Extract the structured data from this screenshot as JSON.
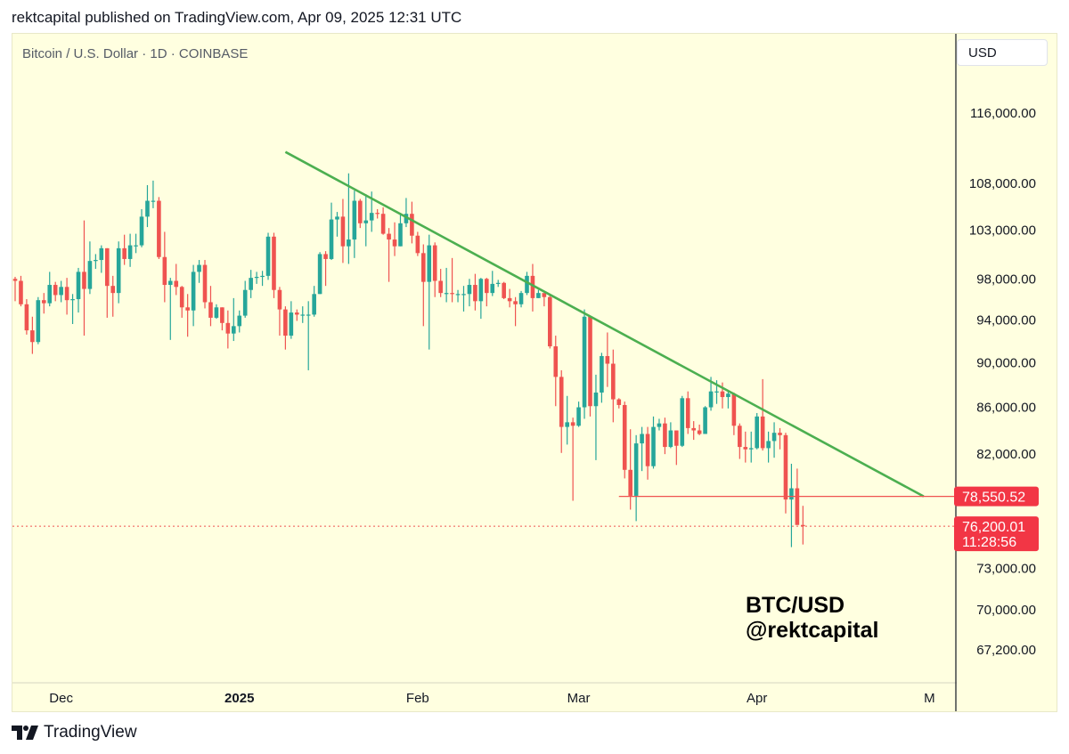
{
  "header": {
    "text": "rektcapital published on TradingView.com, Apr 09, 2025 12:31 UTC"
  },
  "chart": {
    "symbol_title": "Bitcoin / U.S. Dollar · 1D · COINBASE",
    "currency": "USD"
  },
  "watermark": {
    "line1": "BTC/USD",
    "line2": "@rektcapital"
  },
  "footer": {
    "brand": "TradingView",
    "logo_icon": "tradingview-logo-icon"
  },
  "colors": {
    "up": "#26a69a",
    "down": "#ef5350",
    "trendline": "#4caf50",
    "background": "#ffffe0"
  },
  "chart_data": {
    "type": "candlestick",
    "timeframe": "1D",
    "y_axis": {
      "ticks": [
        116000,
        108000,
        103000,
        98000,
        94000,
        90000,
        86000,
        82000,
        73000,
        70000,
        67200
      ],
      "tick_labels": [
        "116,000.00",
        "108,000.00",
        "103,000.00",
        "98,000.00",
        "94,000.00",
        "90,000.00",
        "86,000.00",
        "82,000.00",
        "73,000.00",
        "70,000.00",
        "67,200.00"
      ],
      "scale": "log"
    },
    "x_axis": {
      "labels": [
        {
          "text": "Dec",
          "date": "2024-12-01"
        },
        {
          "text": "2025",
          "date": "2025-01-01",
          "bold": true
        },
        {
          "text": "Feb",
          "date": "2025-02-01"
        },
        {
          "text": "Mar",
          "date": "2025-03-01"
        },
        {
          "text": "Apr",
          "date": "2025-04-01"
        },
        {
          "text": "M",
          "date": "2025-05-01"
        }
      ]
    },
    "price_labels": [
      {
        "price": 78550.52,
        "text": "78,550.52"
      },
      {
        "price": 76200.01,
        "text": "76,200.01",
        "countdown": "11:28:56"
      }
    ],
    "trendline": {
      "from": {
        "date": "2025-01-09",
        "price": 111500
      },
      "to": {
        "date": "2025-04-30",
        "price": 78550.52
      }
    },
    "support_line": {
      "price": 78550.52,
      "from_date": "2025-03-08",
      "to_date": "2025-04-30"
    },
    "current_price_line": {
      "price": 76200.01
    },
    "candles": [
      [
        "2024-11-23",
        98000,
        97800,
        98200,
        95800
      ],
      [
        "2024-11-24",
        97800,
        95500,
        98300,
        95300
      ],
      [
        "2024-11-25",
        95500,
        93000,
        96000,
        92600
      ],
      [
        "2024-11-26",
        93000,
        91900,
        94300,
        90800
      ],
      [
        "2024-11-27",
        91900,
        95900,
        96200,
        91700
      ],
      [
        "2024-11-28",
        95900,
        95600,
        96600,
        94600
      ],
      [
        "2024-11-29",
        95600,
        97400,
        98700,
        95300
      ],
      [
        "2024-11-30",
        97400,
        96400,
        97700,
        95800
      ],
      [
        "2024-12-01",
        96400,
        97200,
        97800,
        95700
      ],
      [
        "2024-12-02",
        97200,
        95900,
        98100,
        94500
      ],
      [
        "2024-12-03",
        95900,
        96000,
        96500,
        93600
      ],
      [
        "2024-12-04",
        96000,
        98700,
        99100,
        94700
      ],
      [
        "2024-12-05",
        98700,
        97000,
        104000,
        92500
      ],
      [
        "2024-12-06",
        97000,
        99800,
        101800,
        96500
      ],
      [
        "2024-12-07",
        99800,
        99900,
        100500,
        99000
      ],
      [
        "2024-12-08",
        99900,
        101100,
        101400,
        98600
      ],
      [
        "2024-12-09",
        101100,
        97300,
        101100,
        94200
      ],
      [
        "2024-12-10",
        97300,
        96600,
        98300,
        94300
      ],
      [
        "2024-12-11",
        96600,
        101100,
        101800,
        95600
      ],
      [
        "2024-12-12",
        101100,
        100000,
        102500,
        99400
      ],
      [
        "2024-12-13",
        100000,
        101400,
        102600,
        99200
      ],
      [
        "2024-12-14",
        101400,
        101400,
        102600,
        100600
      ],
      [
        "2024-12-15",
        101400,
        104400,
        105200,
        101200
      ],
      [
        "2024-12-16",
        104400,
        106100,
        107800,
        103300
      ],
      [
        "2024-12-17",
        106100,
        106100,
        108300,
        105300
      ],
      [
        "2024-12-18",
        106100,
        100200,
        106500,
        100000
      ],
      [
        "2024-12-19",
        100200,
        97400,
        102800,
        95700
      ],
      [
        "2024-12-20",
        97400,
        97800,
        98100,
        92100
      ],
      [
        "2024-12-21",
        97800,
        97200,
        99500,
        96400
      ],
      [
        "2024-12-22",
        97200,
        95200,
        97300,
        94200
      ],
      [
        "2024-12-23",
        95200,
        94900,
        96500,
        92400
      ],
      [
        "2024-12-24",
        94900,
        98700,
        99400,
        93400
      ],
      [
        "2024-12-25",
        98700,
        99400,
        99900,
        97600
      ],
      [
        "2024-12-26",
        99400,
        95700,
        99900,
        95100
      ],
      [
        "2024-12-27",
        95700,
        94200,
        97300,
        93400
      ],
      [
        "2024-12-28",
        94200,
        95200,
        95500,
        94100
      ],
      [
        "2024-12-29",
        95200,
        93700,
        95200,
        93000
      ],
      [
        "2024-12-30",
        93700,
        92700,
        94900,
        91300
      ],
      [
        "2024-12-31",
        92700,
        93400,
        96100,
        92000
      ],
      [
        "2025-01-01",
        93400,
        94400,
        94900,
        92800
      ],
      [
        "2025-01-02",
        94400,
        96900,
        97800,
        94200
      ],
      [
        "2025-01-03",
        96900,
        98100,
        98900,
        96100
      ],
      [
        "2025-01-04",
        98100,
        98200,
        98700,
        97500
      ],
      [
        "2025-01-05",
        98200,
        98300,
        98800,
        97300
      ],
      [
        "2025-01-06",
        98300,
        102300,
        102700,
        97900
      ],
      [
        "2025-01-07",
        102300,
        96900,
        102700,
        96100
      ],
      [
        "2025-01-08",
        96900,
        95000,
        97200,
        92500
      ],
      [
        "2025-01-09",
        95000,
        92500,
        95300,
        91200
      ],
      [
        "2025-01-10",
        92500,
        94700,
        95800,
        92200
      ],
      [
        "2025-01-11",
        94700,
        94500,
        95000,
        93900
      ],
      [
        "2025-01-12",
        94500,
        94500,
        95300,
        93700
      ],
      [
        "2025-01-13",
        94500,
        94500,
        95800,
        89300
      ],
      [
        "2025-01-14",
        94500,
        96500,
        97300,
        94300
      ],
      [
        "2025-01-15",
        96500,
        100500,
        100700,
        96500
      ],
      [
        "2025-01-16",
        100500,
        100000,
        100800,
        97300
      ],
      [
        "2025-01-17",
        100000,
        104100,
        105900,
        99900
      ],
      [
        "2025-01-18",
        104100,
        104400,
        104900,
        102300
      ],
      [
        "2025-01-19",
        104400,
        101300,
        106300,
        99600
      ],
      [
        "2025-01-20",
        101300,
        102000,
        109100,
        99500
      ],
      [
        "2025-01-21",
        102000,
        106100,
        107200,
        100100
      ],
      [
        "2025-01-22",
        106100,
        103700,
        106300,
        103200
      ],
      [
        "2025-01-23",
        103700,
        104000,
        106800,
        101300
      ],
      [
        "2025-01-24",
        104000,
        104800,
        107100,
        102800
      ],
      [
        "2025-01-25",
        104800,
        104700,
        105200,
        104200
      ],
      [
        "2025-01-26",
        104700,
        102600,
        105400,
        102500
      ],
      [
        "2025-01-27",
        102600,
        102000,
        103200,
        97700
      ],
      [
        "2025-01-28",
        102000,
        101300,
        103800,
        100300
      ],
      [
        "2025-01-29",
        101300,
        103700,
        104800,
        101300
      ],
      [
        "2025-01-30",
        103700,
        104700,
        106400,
        103300
      ],
      [
        "2025-01-31",
        104700,
        102400,
        106000,
        101600
      ],
      [
        "2025-02-01",
        102400,
        100600,
        102800,
        100300
      ],
      [
        "2025-02-02",
        100600,
        97700,
        101500,
        93400
      ],
      [
        "2025-02-03",
        97700,
        101400,
        102500,
        91200
      ],
      [
        "2025-02-04",
        101400,
        97800,
        101700,
        96200
      ],
      [
        "2025-02-05",
        97800,
        96600,
        99000,
        96200
      ],
      [
        "2025-02-06",
        96600,
        96600,
        99100,
        95700
      ],
      [
        "2025-02-07",
        96600,
        96500,
        100100,
        95700
      ],
      [
        "2025-02-08",
        96500,
        96500,
        96900,
        95700
      ],
      [
        "2025-02-09",
        96500,
        96500,
        97300,
        94800
      ],
      [
        "2025-02-10",
        96500,
        97400,
        98000,
        95300
      ],
      [
        "2025-02-11",
        97400,
        95800,
        98500,
        94900
      ],
      [
        "2025-02-12",
        95800,
        98000,
        98100,
        94100
      ],
      [
        "2025-02-13",
        98000,
        96600,
        98100,
        95300
      ],
      [
        "2025-02-14",
        96600,
        97500,
        98800,
        96300
      ],
      [
        "2025-02-15",
        97500,
        97600,
        97900,
        97200
      ],
      [
        "2025-02-16",
        97600,
        96100,
        97700,
        96000
      ],
      [
        "2025-02-17",
        96100,
        95800,
        97000,
        95200
      ],
      [
        "2025-02-18",
        95800,
        95500,
        96200,
        93400
      ],
      [
        "2025-02-19",
        95500,
        96600,
        96800,
        95200
      ],
      [
        "2025-02-20",
        96600,
        98300,
        98700,
        96400
      ],
      [
        "2025-02-21",
        98300,
        96100,
        99500,
        94800
      ],
      [
        "2025-02-22",
        96100,
        96600,
        96900,
        96100
      ],
      [
        "2025-02-23",
        96600,
        96200,
        96500,
        95300
      ],
      [
        "2025-02-24",
        96200,
        91500,
        96500,
        91300
      ],
      [
        "2025-02-25",
        91500,
        88700,
        92500,
        86100
      ],
      [
        "2025-02-26",
        88700,
        84300,
        89300,
        82100
      ],
      [
        "2025-02-27",
        84300,
        84700,
        87000,
        82800
      ],
      [
        "2025-02-28",
        84700,
        84400,
        85100,
        78200
      ],
      [
        "2025-03-01",
        84400,
        86000,
        86500,
        84300
      ],
      [
        "2025-03-02",
        86000,
        94300,
        95000,
        85000
      ],
      [
        "2025-03-03",
        94300,
        86100,
        94400,
        85200
      ],
      [
        "2025-03-04",
        86100,
        87300,
        88900,
        81500
      ],
      [
        "2025-03-05",
        87300,
        90600,
        90900,
        86400
      ],
      [
        "2025-03-06",
        90600,
        89900,
        92800,
        87800
      ],
      [
        "2025-03-07",
        89900,
        86700,
        91200,
        84700
      ],
      [
        "2025-03-08",
        86700,
        86200,
        86800,
        85900
      ],
      [
        "2025-03-09",
        86200,
        80700,
        86500,
        80000
      ],
      [
        "2025-03-10",
        80700,
        78600,
        84100,
        77500
      ],
      [
        "2025-03-11",
        78600,
        82900,
        83600,
        76600
      ],
      [
        "2025-03-12",
        82900,
        83700,
        84300,
        80600
      ],
      [
        "2025-03-13",
        83700,
        81000,
        84300,
        79900
      ],
      [
        "2025-03-14",
        81000,
        84300,
        85200,
        80800
      ],
      [
        "2025-03-15",
        84300,
        84600,
        85000,
        84000
      ],
      [
        "2025-03-16",
        84600,
        82600,
        85100,
        82000
      ],
      [
        "2025-03-17",
        82600,
        84000,
        84700,
        82500
      ],
      [
        "2025-03-18",
        84000,
        82700,
        84000,
        81100
      ],
      [
        "2025-03-19",
        82700,
        86800,
        87000,
        82600
      ],
      [
        "2025-03-20",
        86800,
        84200,
        87400,
        83700
      ],
      [
        "2025-03-21",
        84200,
        84000,
        84800,
        83200
      ],
      [
        "2025-03-22",
        84000,
        83700,
        84500,
        83600
      ],
      [
        "2025-03-23",
        83700,
        86000,
        86100,
        83700
      ],
      [
        "2025-03-24",
        86000,
        87400,
        88700,
        85700
      ],
      [
        "2025-03-25",
        87400,
        87400,
        88400,
        86300
      ],
      [
        "2025-03-26",
        87400,
        86900,
        88200,
        85900
      ],
      [
        "2025-03-27",
        86900,
        87200,
        87500,
        85900
      ],
      [
        "2025-03-28",
        87200,
        84400,
        87300,
        83600
      ],
      [
        "2025-03-29",
        84400,
        82600,
        84600,
        81600
      ],
      [
        "2025-03-30",
        82600,
        82400,
        83900,
        81300
      ],
      [
        "2025-03-31",
        82400,
        82500,
        83900,
        81300
      ],
      [
        "2025-04-01",
        82500,
        85200,
        85500,
        82400
      ],
      [
        "2025-04-02",
        85200,
        82500,
        88500,
        82300
      ],
      [
        "2025-04-03",
        82500,
        83100,
        83900,
        81300
      ],
      [
        "2025-04-04",
        83100,
        83800,
        84700,
        81700
      ],
      [
        "2025-04-05",
        83800,
        83600,
        84200,
        82400
      ],
      [
        "2025-04-06",
        83600,
        78300,
        83800,
        77200
      ],
      [
        "2025-04-07",
        78300,
        79200,
        81200,
        74600
      ],
      [
        "2025-04-08",
        79200,
        76300,
        80800,
        76300
      ],
      [
        "2025-04-09",
        76300,
        76200,
        77800,
        74800
      ]
    ]
  }
}
